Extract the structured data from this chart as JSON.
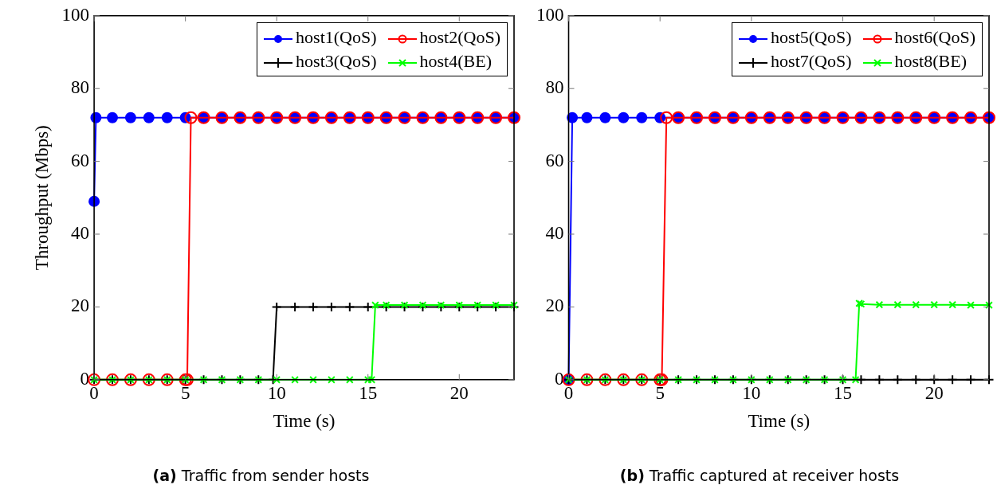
{
  "chart_data": [
    {
      "type": "line",
      "ylabel": "Throughput (Mbps)",
      "xlabel": "Time (s)",
      "xlim": [
        0,
        23
      ],
      "xticks": [
        0,
        5,
        10,
        15,
        20
      ],
      "ylim": [
        0,
        100
      ],
      "yticks": [
        0,
        20,
        40,
        60,
        80,
        100
      ],
      "grid": false,
      "legend": "top right",
      "annotations": [
        "(a) Traffic from sender hosts"
      ],
      "series": [
        {
          "name": "host1(QoS)",
          "color": "#0000ff",
          "marker": "circle",
          "x": [
            0,
            0.1,
            1,
            2,
            3,
            4,
            5,
            6,
            7,
            8,
            9,
            10,
            11,
            12,
            13,
            14,
            15,
            16,
            17,
            18,
            19,
            20,
            21,
            22,
            23
          ],
          "values": [
            49,
            72,
            72,
            72,
            72,
            72,
            72,
            72,
            72,
            72,
            72,
            72,
            72,
            72,
            72,
            72,
            72,
            72,
            72,
            72,
            72,
            72,
            72,
            72,
            72
          ]
        },
        {
          "name": "host2(QoS)",
          "color": "#ff0000",
          "marker": "circle_open",
          "x": [
            0,
            1,
            2,
            3,
            4,
            5,
            5.1,
            5.3,
            6,
            7,
            8,
            9,
            10,
            11,
            12,
            13,
            14,
            15,
            16,
            17,
            18,
            19,
            20,
            21,
            22,
            23
          ],
          "values": [
            0,
            0,
            0,
            0,
            0,
            0,
            0,
            72,
            72,
            72,
            72,
            72,
            72,
            72,
            72,
            72,
            72,
            72,
            72,
            72,
            72,
            72,
            72,
            72,
            72,
            72
          ]
        },
        {
          "name": "host3(QoS)",
          "color": "#000000",
          "marker": "cross",
          "x": [
            0,
            1,
            2,
            3,
            4,
            5,
            6,
            7,
            8,
            9,
            9.8,
            10,
            11,
            12,
            13,
            14,
            15,
            16,
            17,
            18,
            19,
            20,
            21,
            22,
            23
          ],
          "values": [
            0,
            0,
            0,
            0,
            0,
            0,
            0,
            0,
            0,
            0,
            0,
            20,
            20,
            20,
            20,
            20,
            20,
            20,
            20,
            20,
            20,
            20,
            20,
            20,
            20
          ]
        },
        {
          "name": "host4(BE)",
          "color": "#00ff00",
          "marker": "x",
          "x": [
            0,
            1,
            2,
            3,
            4,
            5,
            6,
            7,
            8,
            9,
            10,
            11,
            12,
            13,
            14,
            15,
            15.2,
            15.4,
            16,
            17,
            18,
            19,
            20,
            21,
            22,
            23
          ],
          "values": [
            0,
            0,
            0,
            0,
            0,
            0,
            0,
            0,
            0,
            0,
            0,
            0,
            0,
            0,
            0,
            0,
            0,
            20.5,
            20.5,
            20.5,
            20.5,
            20.5,
            20.5,
            20.5,
            20.5,
            20.5
          ]
        }
      ]
    },
    {
      "type": "line",
      "xlabel": "Time (s)",
      "xlim": [
        0,
        23
      ],
      "xticks": [
        0,
        5,
        10,
        15,
        20
      ],
      "ylim": [
        0,
        100
      ],
      "yticks": [
        0,
        20,
        40,
        60,
        80,
        100
      ],
      "grid": false,
      "legend": "top right",
      "annotations": [
        "(b) Traffic captured at receiver hosts"
      ],
      "series": [
        {
          "name": "host5(QoS)",
          "color": "#0000ff",
          "marker": "circle",
          "x": [
            0,
            0.2,
            1,
            2,
            3,
            4,
            5,
            6,
            7,
            8,
            9,
            10,
            11,
            12,
            13,
            14,
            15,
            16,
            17,
            18,
            19,
            20,
            21,
            22,
            23
          ],
          "values": [
            0,
            72,
            72,
            72,
            72,
            72,
            72,
            72,
            72,
            72,
            72,
            72,
            72,
            72,
            72,
            72,
            72,
            72,
            72,
            72,
            72,
            72,
            72,
            72,
            72
          ]
        },
        {
          "name": "host6(QoS)",
          "color": "#ff0000",
          "marker": "circle_open",
          "x": [
            0,
            1,
            2,
            3,
            4,
            5,
            5.1,
            5.35,
            6,
            7,
            8,
            9,
            10,
            11,
            12,
            13,
            14,
            15,
            16,
            17,
            18,
            19,
            20,
            21,
            22,
            23
          ],
          "values": [
            0,
            0,
            0,
            0,
            0,
            0,
            0,
            72,
            72,
            72,
            72,
            72,
            72,
            72,
            72,
            72,
            72,
            72,
            72,
            72,
            72,
            72,
            72,
            72,
            72,
            72
          ]
        },
        {
          "name": "host7(QoS)",
          "color": "#000000",
          "marker": "cross",
          "x": [
            0,
            1,
            2,
            3,
            4,
            5,
            6,
            7,
            8,
            9,
            10,
            11,
            12,
            13,
            14,
            15,
            16,
            17,
            18,
            19,
            20,
            21,
            22,
            23
          ],
          "values": [
            0,
            0,
            0,
            0,
            0,
            0,
            0,
            0,
            0,
            0,
            0,
            0,
            0,
            0,
            0,
            0,
            0,
            0,
            0,
            0,
            0,
            0,
            0,
            0
          ]
        },
        {
          "name": "host8(BE)",
          "color": "#00ff00",
          "marker": "x",
          "x": [
            0,
            1,
            2,
            3,
            4,
            5,
            6,
            7,
            8,
            9,
            10,
            11,
            12,
            13,
            14,
            15,
            15.7,
            15.9,
            16,
            17,
            18,
            19,
            20,
            21,
            22,
            23
          ],
          "values": [
            0,
            0,
            0,
            0,
            0,
            0,
            0,
            0,
            0,
            0,
            0,
            0,
            0,
            0,
            0,
            0,
            0,
            21,
            20.8,
            20.6,
            20.6,
            20.6,
            20.6,
            20.6,
            20.5,
            20.5
          ]
        }
      ]
    }
  ]
}
